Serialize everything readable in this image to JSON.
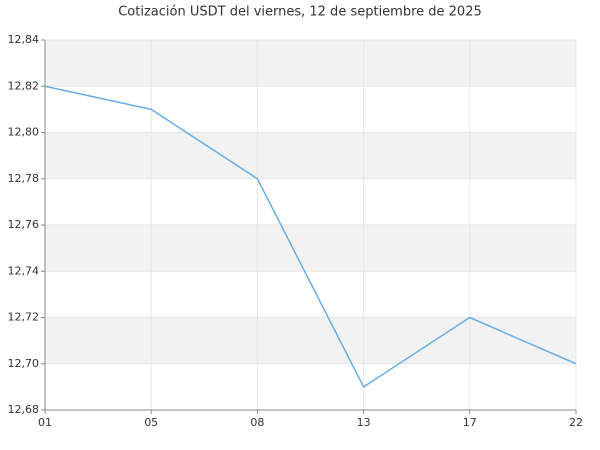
{
  "chart_data": {
    "type": "line",
    "title": "Cotización USDT del viernes, 12 de septiembre de 2025",
    "categories": [
      "01",
      "05",
      "08",
      "13",
      "17",
      "22"
    ],
    "values": [
      12.82,
      12.81,
      12.78,
      12.69,
      12.72,
      12.7
    ],
    "color": "#6aaee8",
    "ylim": [
      12.68,
      12.84
    ],
    "yticks": [
      {
        "value": 12.68,
        "label": "12,68"
      },
      {
        "value": 12.7,
        "label": "12,70"
      },
      {
        "value": 12.72,
        "label": "12,72"
      },
      {
        "value": 12.74,
        "label": "12,74"
      },
      {
        "value": 12.76,
        "label": "12,76"
      },
      {
        "value": 12.78,
        "label": "12,78"
      },
      {
        "value": 12.8,
        "label": "12,80"
      },
      {
        "value": 12.82,
        "label": "12,82"
      },
      {
        "value": 12.84,
        "label": "12,84"
      }
    ],
    "grid": true
  }
}
